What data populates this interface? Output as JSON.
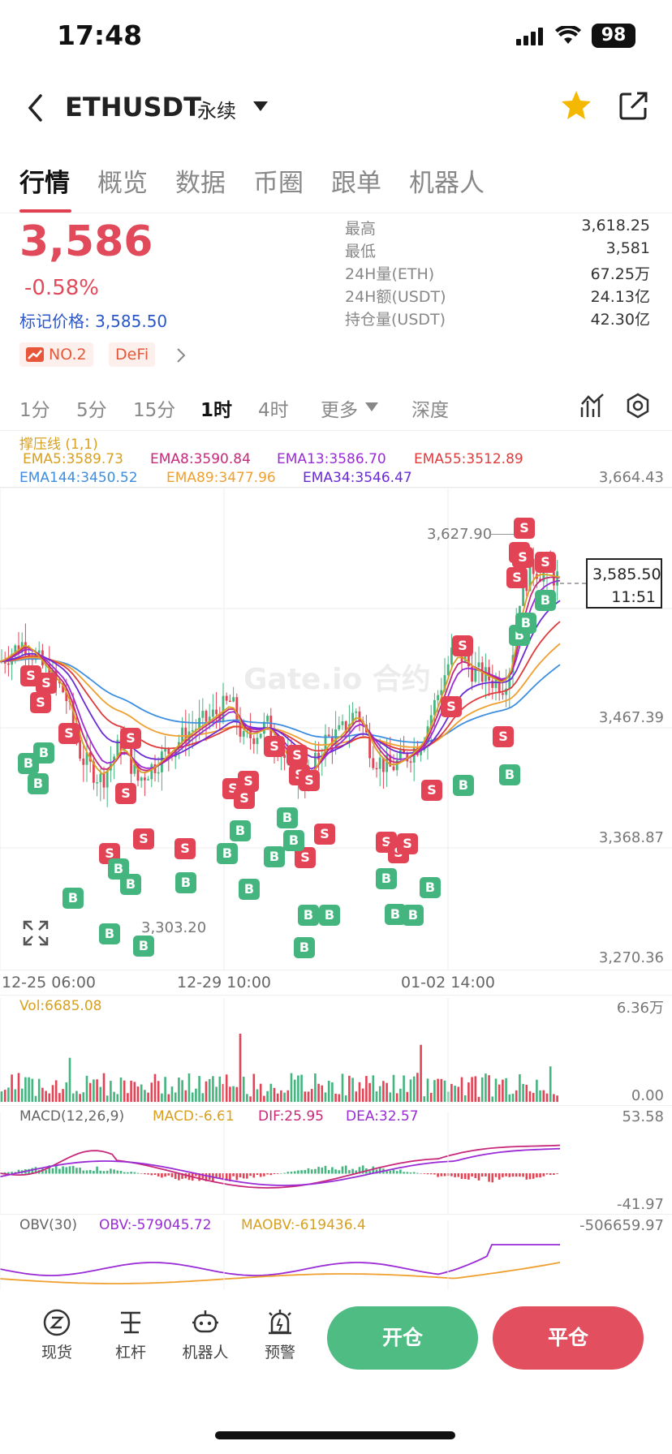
{
  "status_bar": {
    "time": "17:48",
    "battery": "98"
  },
  "header": {
    "pair": "ETHUSDT",
    "contract_type": "永续"
  },
  "tabs": [
    "行情",
    "概览",
    "数据",
    "币圈",
    "跟单",
    "机器人"
  ],
  "ticker": {
    "price": "3,586",
    "change_pct": "-0.58%",
    "mark_price_label": "标记价格: 3,585.50",
    "stats": [
      {
        "label": "最高",
        "value": "3,618.25"
      },
      {
        "label": "最低",
        "value": "3,581"
      },
      {
        "label": "24H量(ETH)",
        "value": "67.25万"
      },
      {
        "label": "24H额(USDT)",
        "value": "24.13亿"
      },
      {
        "label": "持仓量(USDT)",
        "value": "42.30亿"
      }
    ],
    "rank_tag": "NO.2",
    "category_tag": "DeFi"
  },
  "intervals": [
    "1分",
    "5分",
    "15分",
    "1时",
    "4时",
    "更多",
    "深度"
  ],
  "chart": {
    "support_line": "撑压线 (1,1)",
    "ema_row1": [
      {
        "text": "EMA5:3589.73",
        "color": "#d8a020"
      },
      {
        "text": "EMA8:3590.84",
        "color": "#c8287a"
      },
      {
        "text": "EMA13:3586.70",
        "color": "#9a2bd6"
      },
      {
        "text": "EMA55:3512.89",
        "color": "#e03a3a"
      }
    ],
    "ema_row2": [
      {
        "text": "EMA144:3450.52",
        "color": "#3d8ee0"
      },
      {
        "text": "EMA89:3477.96",
        "color": "#f0a030"
      },
      {
        "text": "EMA34:3546.47",
        "color": "#6a2bd6"
      }
    ],
    "y_labels": [
      "3,664.43",
      "3,467.39",
      "3,368.87",
      "3,270.36"
    ],
    "high_marker": "3,627.90",
    "low_marker": "3,303.20",
    "current_price": "3,585.50",
    "countdown": "11:51",
    "time_labels": [
      "12-25 06:00",
      "12-29 10:00",
      "01-02 14:00"
    ],
    "watermark": "Gate.io 合约",
    "signal_s": "S",
    "signal_b": "B",
    "vol_label": "Vol:6685.08",
    "vol_max": "6.36万",
    "vol_min": "0.00",
    "macd": {
      "name": "MACD(12,26,9)",
      "macd": "MACD:-6.61",
      "dif": "DIF:25.95",
      "dea": "DEA:32.57",
      "max": "53.58",
      "min": "-41.97"
    },
    "obv": {
      "name": "OBV(30)",
      "obv": "OBV:-579045.72",
      "maobv": "MAOBV:-619436.4",
      "max": "-506659.97"
    }
  },
  "bottom_nav": [
    {
      "label": "现货",
      "icon": "spot-icon"
    },
    {
      "label": "杠杆",
      "icon": "leverage-icon"
    },
    {
      "label": "机器人",
      "icon": "robot-icon"
    },
    {
      "label": "预警",
      "icon": "alarm-icon"
    }
  ],
  "actions": {
    "open": "开仓",
    "close": "平仓"
  },
  "colors": {
    "up": "#45b57f",
    "down": "#e24455",
    "accent": "#e04a5a",
    "star": "#f5b800"
  }
}
